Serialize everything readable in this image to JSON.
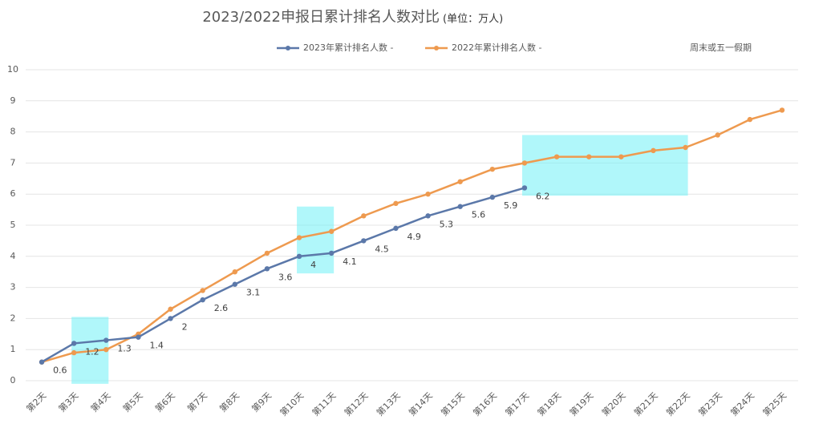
{
  "chart_data": {
    "type": "line",
    "title": "2023/2022申报日累计排名人数对比",
    "subtitle": "(单位：万人)",
    "categories": [
      "第2天",
      "第3天",
      "第4天",
      "第5天",
      "第6天",
      "第7天",
      "第8天",
      "第9天",
      "第10天",
      "第11天",
      "第12天",
      "第13天",
      "第14天",
      "第15天",
      "第16天",
      "第17天",
      "第18天",
      "第19天",
      "第20天",
      "第21天",
      "第22天",
      "第23天",
      "第24天",
      "第25天"
    ],
    "series": [
      {
        "name": "2023年累计排名人数 -",
        "color": "#5b78a9",
        "data_labels": true,
        "values": [
          0.6,
          1.2,
          1.3,
          1.4,
          2,
          2.6,
          3.1,
          3.6,
          4,
          4.1,
          4.5,
          4.9,
          5.3,
          5.6,
          5.9,
          6.2,
          null,
          null,
          null,
          null,
          null,
          null,
          null,
          null
        ]
      },
      {
        "name": "2022年累计排名人数 -",
        "color": "#ee9a4f",
        "data_labels": false,
        "values": [
          0.6,
          0.9,
          1.0,
          1.5,
          2.3,
          2.9,
          3.5,
          4.1,
          4.6,
          4.8,
          5.3,
          5.7,
          6.0,
          6.4,
          6.8,
          7.0,
          7.2,
          7.2,
          7.2,
          7.4,
          7.5,
          7.9,
          8.4,
          8.7
        ]
      }
    ],
    "highlight_name": "周末或五一假期",
    "highlight_color": "#6ff0f5",
    "highlights": [
      {
        "from": "第3天",
        "to": "第4天",
        "y": [
          -0.1,
          2.05
        ]
      },
      {
        "from": "第10天",
        "to": "第11天",
        "y": [
          3.45,
          5.6
        ]
      },
      {
        "from": "第17天",
        "to": "第22天",
        "y": [
          5.95,
          7.9
        ]
      }
    ],
    "ylim": [
      0,
      10
    ],
    "yticks": [
      0,
      1,
      2,
      3,
      4,
      5,
      6,
      7,
      8,
      9,
      10
    ],
    "grid": true
  }
}
